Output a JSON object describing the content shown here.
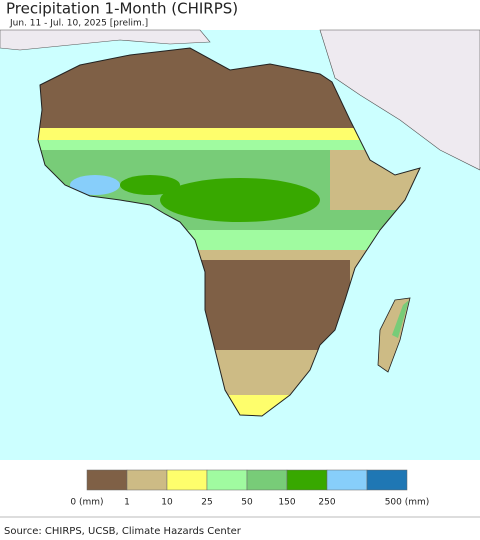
{
  "header": {
    "title": "Precipitation 1-Month (CHIRPS)",
    "subtitle": "Jun. 11 - Jul. 10, 2025 [prelim.]"
  },
  "legend": {
    "colors": [
      "#7f6046",
      "#cdbb85",
      "#fefe6c",
      "#a0fba0",
      "#78cc78",
      "#38a800",
      "#87cefa",
      "#1f77b4"
    ],
    "labels": [
      "0 (mm)",
      "1",
      "10",
      "25",
      "50",
      "150",
      "250",
      null,
      "500 (mm)"
    ]
  },
  "footer": {
    "source": "Source: CHIRPS, UCSB, Climate Hazards Center"
  }
}
